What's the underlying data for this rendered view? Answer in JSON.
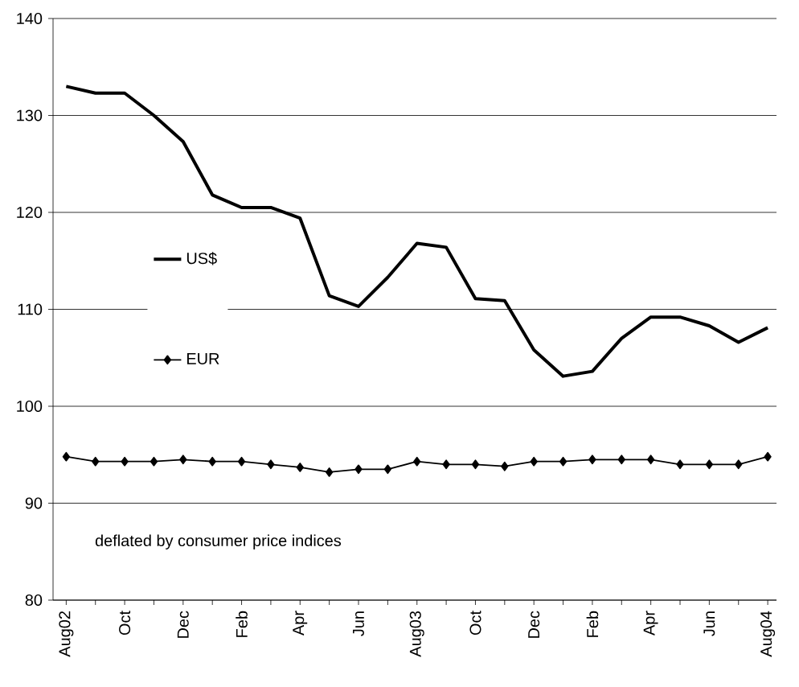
{
  "chart_data": {
    "type": "line",
    "categories": [
      "Aug02",
      null,
      "Oct",
      null,
      "Dec",
      null,
      "Feb",
      null,
      "Apr",
      null,
      "Jun",
      null,
      "Aug03",
      null,
      "Oct",
      null,
      "Dec",
      null,
      "Feb",
      null,
      "Apr",
      null,
      "Jun",
      null,
      "Aug04"
    ],
    "series": [
      {
        "name": "US$",
        "color": "#000000",
        "marker": "none",
        "values": [
          133,
          132.3,
          132.3,
          130,
          127.3,
          121.8,
          120.5,
          120.5,
          119.4,
          111.4,
          110.3,
          113.3,
          116.8,
          116.4,
          111.1,
          110.9,
          105.8,
          103.1,
          103.6,
          107,
          109.2,
          109.2,
          108.3,
          106.6,
          108.1
        ]
      },
      {
        "name": "EUR",
        "color": "#000000",
        "marker": "diamond",
        "values": [
          94.8,
          94.3,
          94.3,
          94.3,
          94.5,
          94.3,
          94.3,
          94,
          93.7,
          93.2,
          93.5,
          93.5,
          94.3,
          94,
          94,
          93.8,
          94.3,
          94.3,
          94.5,
          94.5,
          94.5,
          94,
          94,
          94,
          94.8
        ]
      }
    ],
    "ylim": [
      80,
      140
    ],
    "yticks": [
      80,
      90,
      100,
      110,
      120,
      130,
      140
    ],
    "grid": "y",
    "legend": "left",
    "line_style": "solid",
    "annotations": [
      "deflated by consumer price indices"
    ]
  }
}
